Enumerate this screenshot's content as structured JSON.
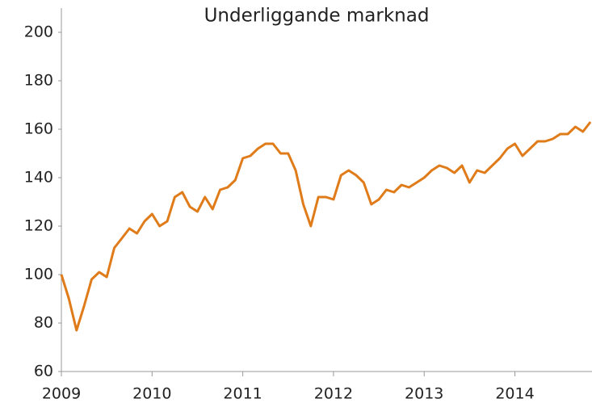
{
  "chart_data": {
    "type": "line",
    "title": "Underliggande marknad",
    "x": [
      2009,
      2009.083,
      2009.167,
      2009.25,
      2009.333,
      2009.417,
      2009.5,
      2009.583,
      2009.667,
      2009.75,
      2009.833,
      2009.917,
      2010,
      2010.083,
      2010.167,
      2010.25,
      2010.333,
      2010.417,
      2010.5,
      2010.583,
      2010.667,
      2010.75,
      2010.833,
      2010.917,
      2011,
      2011.083,
      2011.167,
      2011.25,
      2011.333,
      2011.417,
      2011.5,
      2011.583,
      2011.667,
      2011.75,
      2011.833,
      2011.917,
      2012,
      2012.083,
      2012.167,
      2012.25,
      2012.333,
      2012.417,
      2012.5,
      2012.583,
      2012.667,
      2012.75,
      2012.833,
      2012.917,
      2013,
      2013.083,
      2013.167,
      2013.25,
      2013.333,
      2013.417,
      2013.5,
      2013.583,
      2013.667,
      2013.75,
      2013.833,
      2013.917,
      2014,
      2014.083,
      2014.167,
      2014.25,
      2014.333,
      2014.417,
      2014.5,
      2014.583,
      2014.667,
      2014.75,
      2014.833
    ],
    "series": [
      {
        "name": "Underliggande marknad",
        "color": "#e07b1a",
        "values": [
          100,
          90,
          77,
          87,
          98,
          101,
          99,
          111,
          115,
          119,
          117,
          122,
          125,
          120,
          122,
          132,
          134,
          128,
          126,
          132,
          127,
          135,
          136,
          139,
          148,
          149,
          152,
          154,
          154,
          150,
          150,
          143,
          129,
          120,
          132,
          132,
          131,
          141,
          143,
          141,
          138,
          129,
          131,
          135,
          134,
          137,
          136,
          138,
          140,
          143,
          145,
          144,
          142,
          145,
          138,
          143,
          142,
          145,
          148,
          152,
          154,
          149,
          152,
          155,
          155,
          156,
          158,
          158,
          161,
          159,
          163
        ]
      }
    ],
    "xlim": [
      2009,
      2014.85
    ],
    "xticks": [
      2009,
      2010,
      2011,
      2012,
      2013,
      2014
    ],
    "ylim": [
      60,
      210
    ],
    "yticks": [
      60,
      80,
      100,
      120,
      140,
      160,
      180,
      200
    ],
    "grid": false
  }
}
